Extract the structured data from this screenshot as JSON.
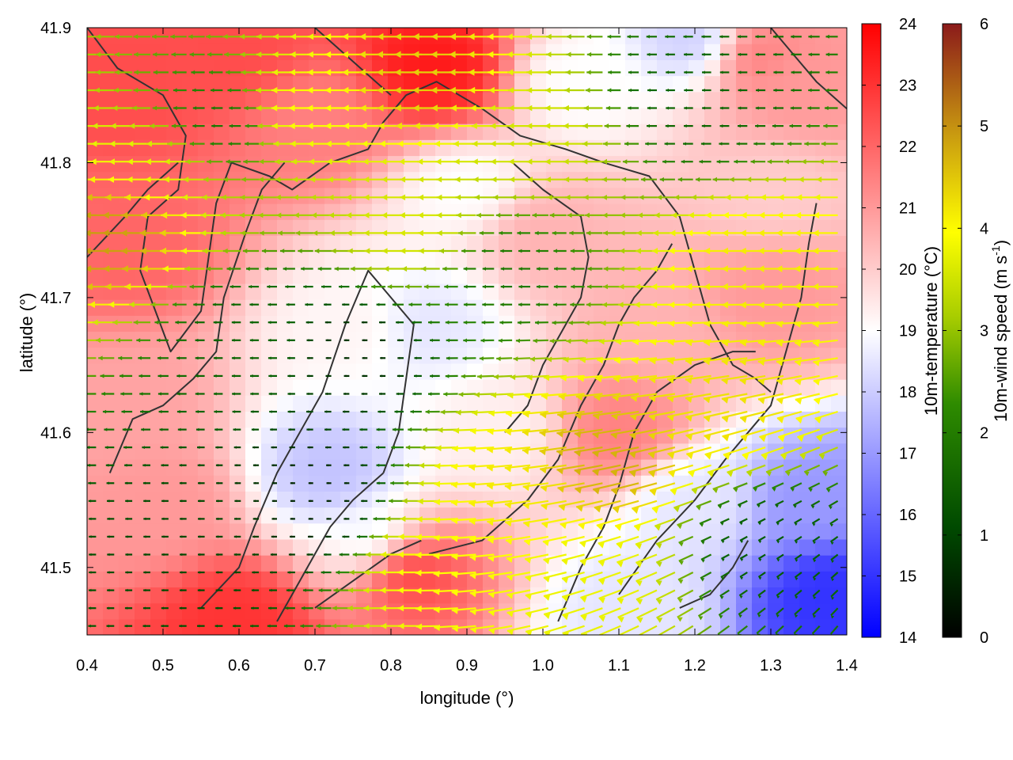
{
  "chart_data": {
    "type": "heatmap",
    "subtype": "temperature-field-with-wind-vectors",
    "xlabel": "longitude (°)",
    "ylabel": "latitude (°)",
    "xlim": [
      0.4,
      1.4
    ],
    "ylim": [
      41.45,
      41.9
    ],
    "x_ticks": [
      "0.4",
      "0.5",
      "0.6",
      "0.7",
      "0.8",
      "0.9",
      "1.0",
      "1.1",
      "1.2",
      "1.3",
      "1.4"
    ],
    "y_ticks": [
      "41.5",
      "41.6",
      "41.7",
      "41.8",
      "41.9"
    ],
    "grid": false,
    "temperature_colorbar": {
      "label": "10m-temperature (°C)",
      "range": [
        14,
        24
      ],
      "ticks": [
        "14",
        "15",
        "16",
        "17",
        "18",
        "19",
        "20",
        "21",
        "22",
        "23",
        "24"
      ],
      "colors": [
        "#0000ff",
        "#ffffff",
        "#ff0000"
      ]
    },
    "wind_colorbar": {
      "label_main": "10m-wind speed (m s",
      "label_sup": "-1",
      "label_end": ")",
      "range": [
        0,
        6
      ],
      "ticks": [
        "0",
        "1",
        "2",
        "3",
        "4",
        "5",
        "6"
      ],
      "colors": [
        "#000000",
        "#005a00",
        "#2e8b00",
        "#a6cc00",
        "#ffff00",
        "#c99a10",
        "#8b1a1a"
      ]
    },
    "temperature_anomalies": [
      {
        "lon": 0.45,
        "lat": 41.86,
        "t": 22.5
      },
      {
        "lon": 0.6,
        "lat": 41.88,
        "t": 22.5
      },
      {
        "lon": 0.45,
        "lat": 41.74,
        "t": 22.0
      },
      {
        "lon": 0.86,
        "lat": 41.87,
        "t": 23.5
      },
      {
        "lon": 0.7,
        "lat": 41.83,
        "t": 21.5
      },
      {
        "lon": 1.28,
        "lat": 41.88,
        "t": 21.5
      },
      {
        "lon": 1.34,
        "lat": 41.86,
        "t": 21.0
      },
      {
        "lon": 1.2,
        "lat": 41.89,
        "t": 18.0
      },
      {
        "lon": 1.05,
        "lat": 41.86,
        "t": 19.0
      },
      {
        "lon": 0.75,
        "lat": 41.68,
        "t": 19.2
      },
      {
        "lon": 0.85,
        "lat": 41.68,
        "t": 18.5
      },
      {
        "lon": 0.95,
        "lat": 41.6,
        "t": 19.3
      },
      {
        "lon": 0.72,
        "lat": 41.57,
        "t": 17.8
      },
      {
        "lon": 0.78,
        "lat": 41.52,
        "t": 18.6
      },
      {
        "lon": 1.1,
        "lat": 41.6,
        "t": 21.5
      },
      {
        "lon": 1.15,
        "lat": 41.68,
        "t": 20.5
      },
      {
        "lon": 1.3,
        "lat": 41.7,
        "t": 21.0
      },
      {
        "lon": 1.35,
        "lat": 41.55,
        "t": 17.0
      },
      {
        "lon": 1.38,
        "lat": 41.48,
        "t": 15.0
      },
      {
        "lon": 1.2,
        "lat": 41.55,
        "t": 18.5
      },
      {
        "lon": 1.12,
        "lat": 41.47,
        "t": 18.5
      },
      {
        "lon": 0.82,
        "lat": 41.5,
        "t": 22.8
      },
      {
        "lon": 0.6,
        "lat": 41.46,
        "t": 23.0
      },
      {
        "lon": 0.5,
        "lat": 41.55,
        "t": 21.0
      },
      {
        "lon": 0.45,
        "lat": 41.62,
        "t": 20.8
      },
      {
        "lon": 1.0,
        "lat": 41.75,
        "t": 20.5
      },
      {
        "lon": 0.9,
        "lat": 41.78,
        "t": 19.0
      },
      {
        "lon": 1.3,
        "lat": 41.78,
        "t": 20.0
      }
    ],
    "wind_speed_anomalies": [
      {
        "lon": 0.86,
        "lat": 41.86,
        "s": 4.5
      },
      {
        "lon": 0.7,
        "lat": 41.84,
        "s": 4.0
      },
      {
        "lon": 0.45,
        "lat": 41.75,
        "s": 5.0
      },
      {
        "lon": 0.5,
        "lat": 41.8,
        "s": 3.8
      },
      {
        "lon": 0.85,
        "lat": 41.75,
        "s": 3.6
      },
      {
        "lon": 1.0,
        "lat": 41.82,
        "s": 3.5
      },
      {
        "lon": 1.3,
        "lat": 41.72,
        "s": 4.2
      },
      {
        "lon": 1.25,
        "lat": 41.62,
        "s": 4.3
      },
      {
        "lon": 1.1,
        "lat": 41.58,
        "s": 4.8
      },
      {
        "lon": 0.98,
        "lat": 41.56,
        "s": 4.2
      },
      {
        "lon": 0.88,
        "lat": 41.5,
        "s": 4.0
      },
      {
        "lon": 1.08,
        "lat": 41.5,
        "s": 3.8
      },
      {
        "lon": 0.62,
        "lat": 41.67,
        "s": 1.2
      },
      {
        "lon": 0.75,
        "lat": 41.66,
        "s": 0.5
      },
      {
        "lon": 0.7,
        "lat": 41.55,
        "s": 0.4
      },
      {
        "lon": 0.55,
        "lat": 41.52,
        "s": 0.8
      },
      {
        "lon": 0.95,
        "lat": 41.72,
        "s": 1.6
      },
      {
        "lon": 1.2,
        "lat": 41.85,
        "s": 1.2
      },
      {
        "lon": 1.3,
        "lat": 41.52,
        "s": 1.0
      },
      {
        "lon": 0.58,
        "lat": 41.83,
        "s": 1.5
      }
    ],
    "contours": [
      [
        [
          0.4,
          41.9
        ],
        [
          0.44,
          41.87
        ],
        [
          0.5,
          41.85
        ],
        [
          0.53,
          41.82
        ],
        [
          0.52,
          41.78
        ],
        [
          0.48,
          41.76
        ],
        [
          0.47,
          41.72
        ],
        [
          0.49,
          41.69
        ],
        [
          0.51,
          41.66
        ],
        [
          0.55,
          41.69
        ],
        [
          0.56,
          41.73
        ],
        [
          0.57,
          41.77
        ],
        [
          0.59,
          41.8
        ],
        [
          0.64,
          41.79
        ],
        [
          0.67,
          41.78
        ],
        [
          0.72,
          41.8
        ],
        [
          0.77,
          41.81
        ],
        [
          0.79,
          41.83
        ],
        [
          0.82,
          41.85
        ],
        [
          0.86,
          41.86
        ],
        [
          0.92,
          41.84
        ],
        [
          0.97,
          41.82
        ],
        [
          1.03,
          41.81
        ],
        [
          1.08,
          41.8
        ],
        [
          1.14,
          41.79
        ],
        [
          1.18,
          41.76
        ],
        [
          1.2,
          41.72
        ],
        [
          1.22,
          41.68
        ],
        [
          1.25,
          41.65
        ],
        [
          1.28,
          41.64
        ],
        [
          1.3,
          41.63
        ]
      ],
      [
        [
          0.4,
          41.73
        ],
        [
          0.45,
          41.76
        ],
        [
          0.48,
          41.78
        ],
        [
          0.52,
          41.8
        ]
      ],
      [
        [
          0.43,
          41.57
        ],
        [
          0.46,
          41.61
        ],
        [
          0.5,
          41.62
        ],
        [
          0.54,
          41.64
        ],
        [
          0.57,
          41.66
        ],
        [
          0.58,
          41.7
        ],
        [
          0.61,
          41.75
        ],
        [
          0.63,
          41.78
        ],
        [
          0.66,
          41.8
        ]
      ],
      [
        [
          0.55,
          41.47
        ],
        [
          0.6,
          41.5
        ],
        [
          0.62,
          41.53
        ],
        [
          0.65,
          41.57
        ],
        [
          0.68,
          41.6
        ],
        [
          0.71,
          41.63
        ],
        [
          0.74,
          41.68
        ],
        [
          0.77,
          41.72
        ],
        [
          0.8,
          41.7
        ],
        [
          0.83,
          41.68
        ],
        [
          0.82,
          41.64
        ],
        [
          0.81,
          41.6
        ],
        [
          0.79,
          41.57
        ]
      ],
      [
        [
          0.65,
          41.46
        ],
        [
          0.69,
          41.5
        ],
        [
          0.72,
          41.53
        ],
        [
          0.75,
          41.55
        ],
        [
          0.77,
          41.56
        ],
        [
          0.79,
          41.57
        ]
      ],
      [
        [
          0.85,
          41.51
        ],
        [
          0.92,
          41.52
        ],
        [
          0.98,
          41.55
        ],
        [
          1.02,
          41.58
        ],
        [
          1.05,
          41.62
        ],
        [
          1.08,
          41.65
        ],
        [
          1.1,
          41.68
        ],
        [
          1.12,
          41.7
        ],
        [
          1.15,
          41.72
        ],
        [
          1.17,
          41.74
        ]
      ],
      [
        [
          0.95,
          41.6
        ],
        [
          0.98,
          41.62
        ],
        [
          1.0,
          41.65
        ],
        [
          1.03,
          41.68
        ],
        [
          1.05,
          41.7
        ],
        [
          1.06,
          41.73
        ],
        [
          1.05,
          41.76
        ],
        [
          1.0,
          41.78
        ],
        [
          0.96,
          41.8
        ]
      ],
      [
        [
          1.02,
          41.46
        ],
        [
          1.05,
          41.5
        ],
        [
          1.08,
          41.53
        ],
        [
          1.1,
          41.56
        ],
        [
          1.12,
          41.6
        ],
        [
          1.15,
          41.63
        ],
        [
          1.2,
          41.65
        ],
        [
          1.25,
          41.66
        ],
        [
          1.28,
          41.66
        ]
      ],
      [
        [
          1.1,
          41.48
        ],
        [
          1.15,
          41.52
        ],
        [
          1.2,
          41.55
        ],
        [
          1.24,
          41.58
        ],
        [
          1.27,
          41.6
        ],
        [
          1.3,
          41.62
        ],
        [
          1.32,
          41.66
        ],
        [
          1.34,
          41.7
        ],
        [
          1.35,
          41.74
        ],
        [
          1.36,
          41.77
        ]
      ],
      [
        [
          0.7,
          41.9
        ],
        [
          0.74,
          41.88
        ],
        [
          0.78,
          41.86
        ],
        [
          0.8,
          41.85
        ]
      ],
      [
        [
          1.18,
          41.47
        ],
        [
          1.22,
          41.48
        ],
        [
          1.25,
          41.5
        ],
        [
          1.27,
          41.52
        ]
      ],
      [
        [
          0.7,
          41.47
        ],
        [
          0.75,
          41.49
        ],
        [
          0.8,
          41.51
        ],
        [
          0.84,
          41.52
        ]
      ],
      [
        [
          1.3,
          41.9
        ],
        [
          1.33,
          41.88
        ],
        [
          1.36,
          41.86
        ],
        [
          1.4,
          41.84
        ]
      ]
    ]
  }
}
